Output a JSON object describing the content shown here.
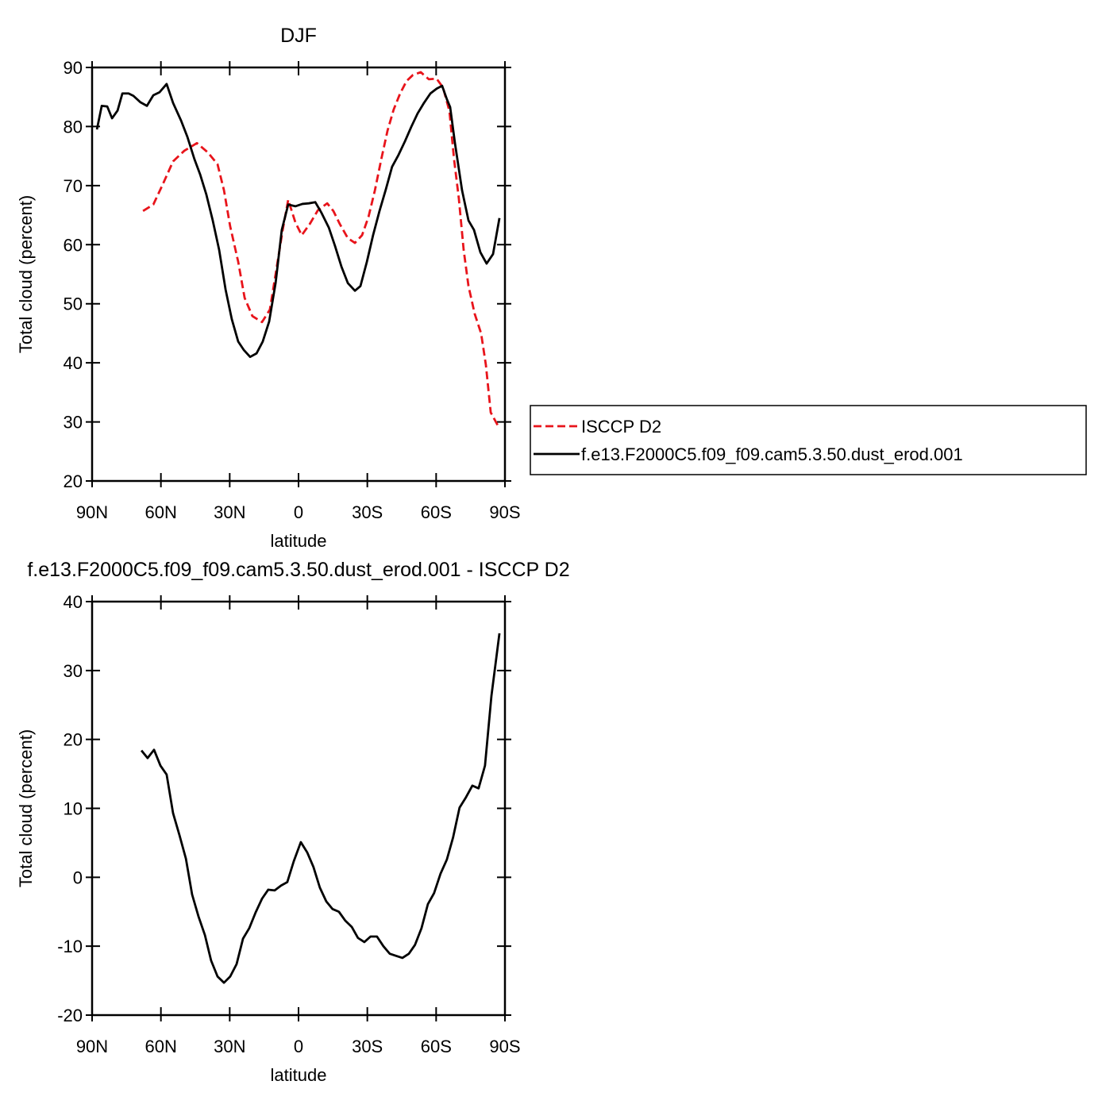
{
  "chart_data": [
    {
      "type": "line",
      "title": "DJF",
      "ylabel": "Total cloud (percent)",
      "xlabel": "latitude",
      "xlim": [
        90,
        -90
      ],
      "ylim": [
        20,
        90
      ],
      "xticks": [
        {
          "value": 90,
          "label": "90N"
        },
        {
          "value": 60,
          "label": "60N"
        },
        {
          "value": 30,
          "label": "30N"
        },
        0,
        {
          "value": -30,
          "label": "30S"
        },
        {
          "value": -60,
          "label": "60S"
        },
        {
          "value": -90,
          "label": "90S"
        }
      ],
      "yticks": [
        20,
        30,
        40,
        50,
        60,
        70,
        80,
        90
      ],
      "legend": "outside-right",
      "series": [
        {
          "name": "ISCCP D2",
          "color": "#e8141b",
          "dash": true,
          "x": [
            67.8,
            63.3,
            59.2,
            54.7,
            49.8,
            44.3,
            39.5,
            35.3,
            32.5,
            29.8,
            26.3,
            23.5,
            20.1,
            15.9,
            12.5,
            9.7,
            6.9,
            4.5,
            1.4,
            -1.4,
            -4.9,
            -8.4,
            -12.5,
            -15.2,
            -18.0,
            -21.5,
            -24.6,
            -27.7,
            -30.5,
            -33.3,
            -36.1,
            -38.8,
            -41.5,
            -44.3,
            -47.1,
            -49.8,
            -53.3,
            -56.8,
            -60.2,
            -63.0,
            -65.8,
            -67.8,
            -69.9,
            -72.0,
            -74.1,
            -76.8,
            -79.6,
            -81.7,
            -83.8,
            -87.3
          ],
          "values": [
            65.7,
            66.8,
            70.2,
            74.1,
            75.9,
            77.2,
            75.6,
            73.6,
            69.2,
            63.1,
            57.1,
            51.0,
            47.9,
            46.9,
            49.0,
            55.7,
            62.5,
            67.6,
            63.8,
            61.6,
            63.5,
            65.8,
            67.0,
            65.7,
            63.5,
            61.1,
            60.3,
            61.6,
            64.7,
            69.2,
            74.5,
            79.3,
            82.9,
            85.6,
            87.7,
            88.7,
            89.2,
            88.0,
            88.1,
            86.6,
            82.6,
            74.5,
            67.8,
            59.1,
            53.0,
            48.3,
            45.0,
            39.6,
            31.6,
            29.1
          ]
        },
        {
          "name": "f.e13.F2000C5.f09_f09.cam5.3.50.dust_erod.001",
          "color": "#000000",
          "dash": false,
          "x": [
            87.9,
            85.8,
            83.4,
            81.3,
            78.9,
            76.8,
            74.1,
            72.0,
            68.9,
            66.1,
            63.3,
            60.6,
            57.5,
            54.7,
            51.2,
            48.5,
            45.4,
            42.9,
            40.2,
            37.4,
            34.6,
            31.8,
            29.1,
            26.3,
            23.9,
            21.1,
            18.3,
            15.6,
            12.8,
            10.0,
            7.3,
            4.5,
            1.4,
            -1.7,
            -4.5,
            -7.3,
            -10.0,
            -13.2,
            -15.9,
            -18.7,
            -21.5,
            -24.6,
            -27.0,
            -29.8,
            -32.5,
            -35.3,
            -38.1,
            -40.8,
            -43.6,
            -46.4,
            -49.1,
            -51.9,
            -54.7,
            -57.5,
            -60.2,
            -62.6,
            -64.7,
            -66.1,
            -68.2,
            -71.3,
            -74.1,
            -76.5,
            -79.3,
            -82.0,
            -84.8,
            -87.6
          ],
          "values": [
            79.5,
            83.5,
            83.4,
            81.4,
            82.7,
            85.6,
            85.6,
            85.2,
            84.1,
            83.5,
            85.3,
            85.8,
            87.2,
            84.0,
            81.0,
            78.3,
            74.5,
            71.9,
            68.5,
            64.1,
            59.1,
            52.4,
            47.4,
            43.6,
            42.2,
            41.0,
            41.6,
            43.6,
            47.0,
            53.5,
            62.5,
            66.8,
            66.5,
            66.9,
            67.0,
            67.2,
            65.4,
            62.9,
            59.8,
            56.3,
            53.5,
            52.2,
            53.0,
            57.1,
            61.6,
            65.7,
            69.4,
            73.2,
            75.2,
            77.5,
            79.9,
            82.2,
            84.0,
            85.6,
            86.4,
            86.9,
            84.6,
            83.3,
            77.2,
            69.2,
            64.1,
            62.5,
            58.7,
            56.8,
            58.4,
            64.5
          ]
        }
      ]
    },
    {
      "type": "line",
      "title": "f.e13.F2000C5.f09_f09.cam5.3.50.dust_erod.001 - ISCCP D2",
      "ylabel": "Total cloud (percent)",
      "xlabel": "latitude",
      "xlim": [
        90,
        -90
      ],
      "ylim": [
        -20,
        40
      ],
      "xticks": [
        {
          "value": 90,
          "label": "90N"
        },
        {
          "value": 60,
          "label": "60N"
        },
        {
          "value": 30,
          "label": "30N"
        },
        0,
        {
          "value": -30,
          "label": "30S"
        },
        {
          "value": -60,
          "label": "60S"
        },
        {
          "value": -90,
          "label": "90S"
        }
      ],
      "yticks": [
        -20,
        -10,
        0,
        10,
        20,
        30,
        40
      ],
      "series": [
        {
          "color": "#000000",
          "dash": false,
          "x": [
            68.5,
            65.8,
            63.0,
            60.2,
            57.5,
            54.7,
            51.9,
            49.1,
            46.4,
            43.6,
            40.8,
            38.1,
            35.3,
            32.5,
            29.8,
            27.0,
            24.2,
            21.5,
            18.7,
            15.9,
            13.2,
            10.4,
            7.6,
            4.9,
            2.1,
            -1.0,
            -3.8,
            -6.5,
            -9.3,
            -12.1,
            -14.8,
            -17.6,
            -20.4,
            -23.2,
            -25.9,
            -28.7,
            -31.4,
            -34.2,
            -37.0,
            -39.8,
            -42.5,
            -45.3,
            -48.1,
            -50.8,
            -53.6,
            -56.4,
            -59.1,
            -61.9,
            -64.7,
            -67.4,
            -70.2,
            -73.0,
            -75.8,
            -78.5,
            -81.3,
            -84.1,
            -87.6
          ],
          "values": [
            18.4,
            17.3,
            18.5,
            16.2,
            14.9,
            9.3,
            6.1,
            2.7,
            -2.5,
            -5.7,
            -8.4,
            -12.1,
            -14.4,
            -15.3,
            -14.4,
            -12.6,
            -8.9,
            -7.4,
            -5.1,
            -3.1,
            -1.8,
            -1.9,
            -1.2,
            -0.7,
            2.3,
            5.1,
            3.6,
            1.5,
            -1.5,
            -3.5,
            -4.6,
            -5.0,
            -6.3,
            -7.2,
            -8.8,
            -9.4,
            -8.6,
            -8.6,
            -10.0,
            -11.1,
            -11.4,
            -11.7,
            -11.1,
            -9.8,
            -7.4,
            -3.9,
            -2.3,
            0.5,
            2.6,
            5.8,
            10.1,
            11.6,
            13.3,
            12.9,
            16.2,
            26.3,
            35.4
          ]
        }
      ]
    }
  ]
}
